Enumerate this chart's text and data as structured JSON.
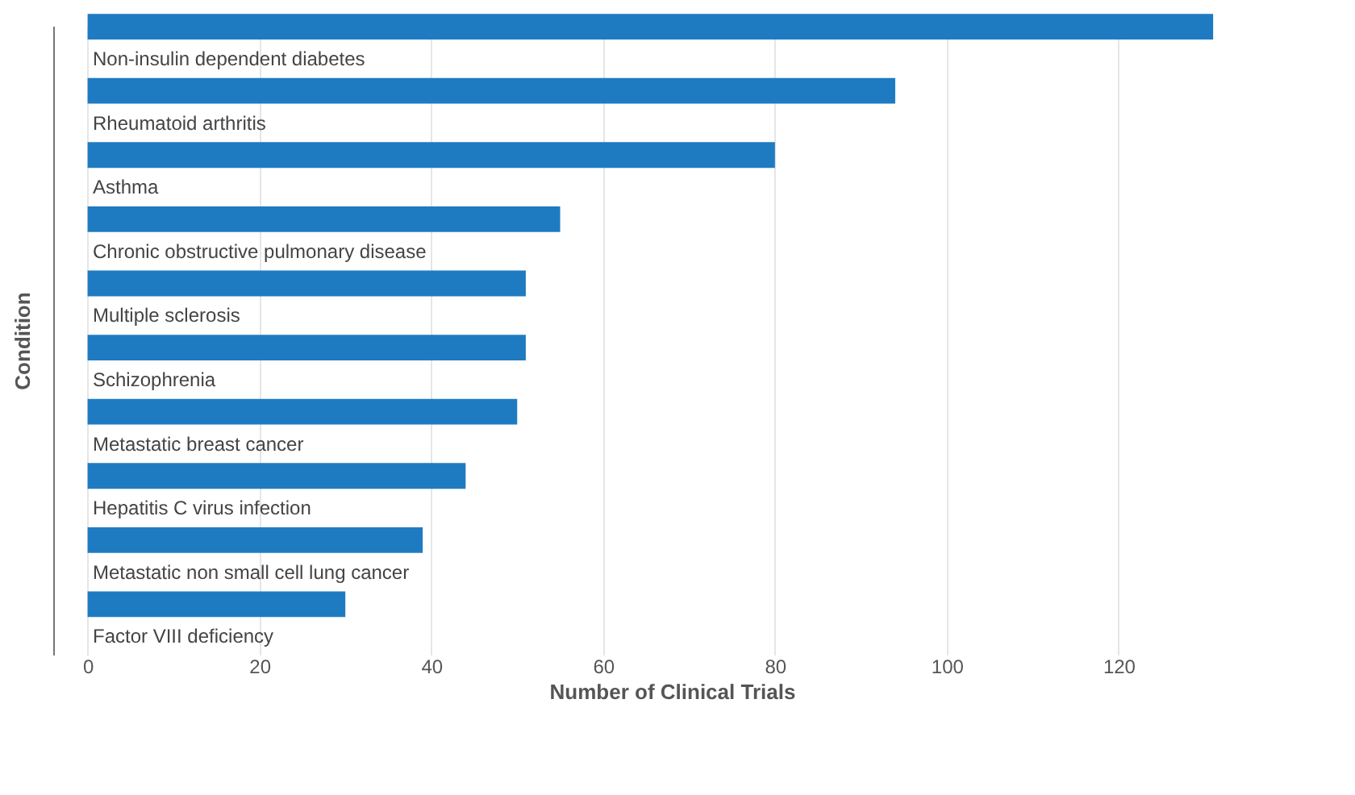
{
  "chart_data": {
    "type": "bar",
    "orientation": "horizontal",
    "xlabel": "Number of Clinical Trials",
    "ylabel": "Condition",
    "categories": [
      "Non-insulin dependent diabetes",
      "Rheumatoid arthritis",
      "Asthma",
      "Chronic obstructive pulmonary disease",
      "Multiple sclerosis",
      "Schizophrenia",
      "Metastatic breast cancer",
      "Hepatitis C virus infection",
      "Metastatic non small cell lung cancer",
      "Factor VIII deficiency"
    ],
    "values": [
      131,
      94,
      80,
      55,
      51,
      51,
      50,
      44,
      39,
      30
    ],
    "color": "#1f7bc1",
    "xlim": [
      -4,
      140
    ],
    "xticks": [
      0,
      20,
      40,
      60,
      80,
      100,
      120
    ],
    "grid": "x"
  }
}
